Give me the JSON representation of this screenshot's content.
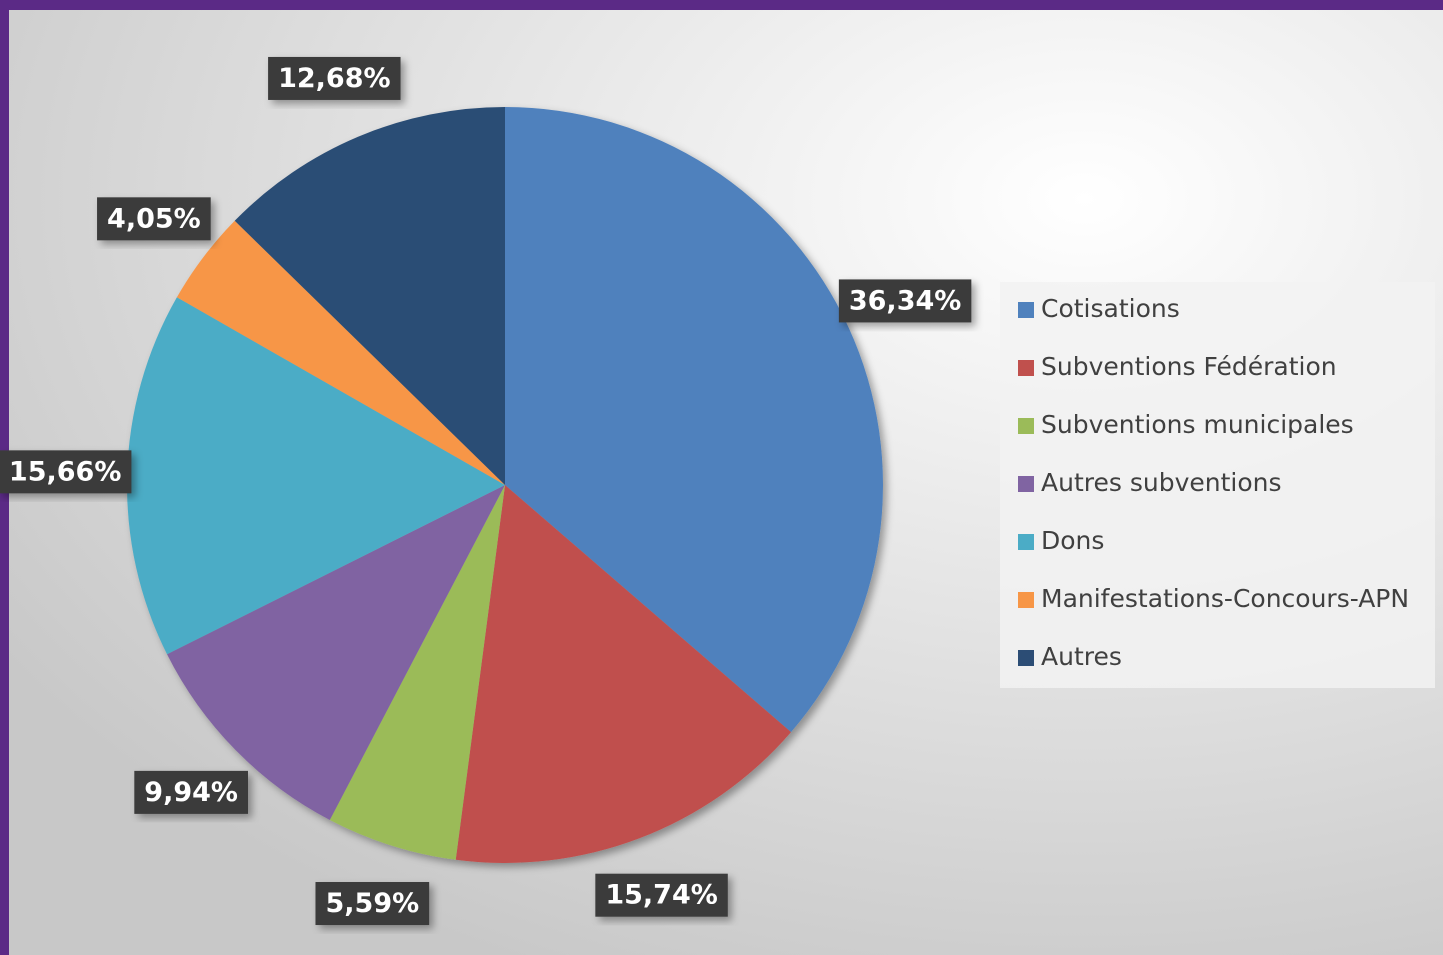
{
  "chart_data": {
    "type": "pie",
    "categories": [
      "Cotisations",
      "Subventions Fédération",
      "Subventions municipales",
      "Autres subventions",
      "Dons",
      "Manifestations-Concours-APN",
      "Autres"
    ],
    "values": [
      36.34,
      15.74,
      5.59,
      9.94,
      15.66,
      4.05,
      12.68
    ],
    "value_labels": [
      "36,34%",
      "15,74%",
      "5,59%",
      "9,94%",
      "15,66%",
      "4,05%",
      "12,68%"
    ],
    "colors": [
      "#4f81bd",
      "#c0504d",
      "#9bbb59",
      "#8064a2",
      "#4bacc6",
      "#f79646",
      "#2c4d75"
    ],
    "legend": "right"
  }
}
